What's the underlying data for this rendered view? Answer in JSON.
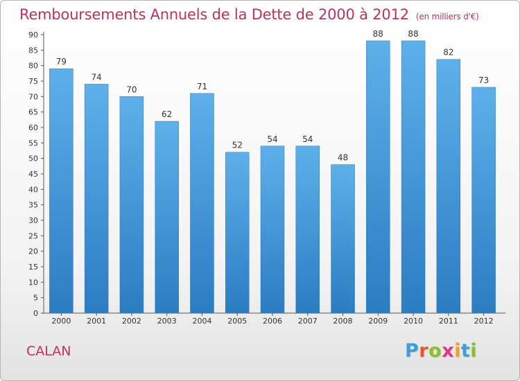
{
  "header": {
    "title": "Remboursements Annuels de la Dette de 2000 à 2012",
    "unit": "(en milliers d'€)"
  },
  "footer": {
    "commune": "CALAN",
    "logo_letters": [
      "P",
      "r",
      "o",
      "x",
      "i",
      "t",
      "i"
    ],
    "logo_colors": [
      "#3aa0d8",
      "#e8572a",
      "#8bbf2b",
      "#d93a87",
      "#f2a31b",
      "#3aa0d8",
      "#8bbf2b"
    ]
  },
  "chart_data": {
    "type": "bar",
    "title": "Remboursements Annuels de la Dette de 2000 à 2012",
    "categories": [
      "2000",
      "2001",
      "2002",
      "2003",
      "2004",
      "2005",
      "2006",
      "2007",
      "2008",
      "2009",
      "2010",
      "2011",
      "2012"
    ],
    "values": [
      79,
      74,
      70,
      62,
      71,
      52,
      54,
      54,
      48,
      88,
      88,
      82,
      73
    ],
    "ylim": [
      0,
      90
    ],
    "yticks": [
      0,
      5,
      10,
      15,
      20,
      25,
      30,
      35,
      40,
      45,
      50,
      55,
      60,
      65,
      70,
      75,
      80,
      85,
      90
    ],
    "grid": false,
    "bar_color": "#4a9ede",
    "xlabel": "",
    "ylabel": ""
  }
}
